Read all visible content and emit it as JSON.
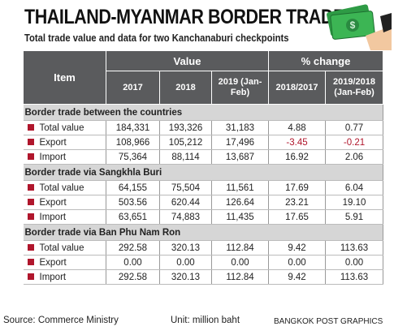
{
  "header": {
    "title": "THAILAND-MYANMAR BORDER TRADE",
    "subtitle": "Total trade value and data for two Kanchanaburi checkpoints"
  },
  "table": {
    "item_header": "Item",
    "groups": [
      "Value",
      "% change"
    ],
    "columns": [
      "2017",
      "2018",
      "2019 (Jan-Feb)",
      "2018/2017",
      "2019/2018 (Jan-Feb)"
    ],
    "sections": [
      {
        "title": "Border trade between the countries",
        "rows": [
          {
            "label": "Total value",
            "cells": [
              "184,331",
              "193,326",
              "31,183",
              "4.88",
              "0.77"
            ]
          },
          {
            "label": "Export",
            "cells": [
              "108,966",
              "105,212",
              "17,496",
              "-3.45",
              "-0.21"
            ]
          },
          {
            "label": "Import",
            "cells": [
              "75,364",
              "88,114",
              "13,687",
              "16.92",
              "2.06"
            ]
          }
        ]
      },
      {
        "title": "Border trade via Sangkhla Buri",
        "rows": [
          {
            "label": "Total value",
            "cells": [
              "64,155",
              "75,504",
              "11,561",
              "17.69",
              "6.04"
            ]
          },
          {
            "label": "Export",
            "cells": [
              "503.56",
              "620.44",
              "126.64",
              "23.21",
              "19.10"
            ]
          },
          {
            "label": "Import",
            "cells": [
              "63,651",
              "74,883",
              "11,435",
              "17.65",
              "5.91"
            ]
          }
        ]
      },
      {
        "title": "Border trade via Ban Phu Nam Ron",
        "rows": [
          {
            "label": "Total value",
            "cells": [
              "292.58",
              "320.13",
              "112.84",
              "9.42",
              "113.63"
            ]
          },
          {
            "label": "Export",
            "cells": [
              "0.00",
              "0.00",
              "0.00",
              "0.00",
              "0.00"
            ]
          },
          {
            "label": "Import",
            "cells": [
              "292.58",
              "320.13",
              "112.84",
              "9.42",
              "113.63"
            ]
          }
        ]
      }
    ]
  },
  "footer": {
    "source": "Source: Commerce Ministry",
    "unit": "Unit: million baht",
    "credit": "BANGKOK POST GRAPHICS"
  }
}
